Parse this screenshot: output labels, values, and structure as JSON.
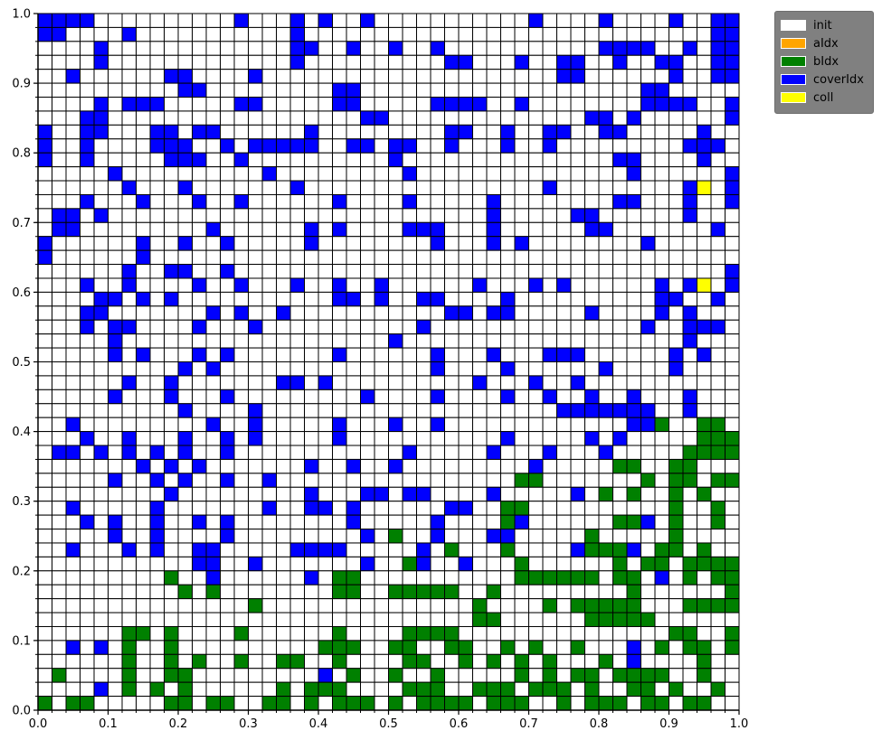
{
  "chart_data": {
    "type": "heatmap",
    "grid": {
      "cols": 50,
      "rows": 50
    },
    "xlim": [
      0.0,
      1.0
    ],
    "ylim": [
      0.0,
      1.0
    ],
    "xticks": [
      "0.0",
      "0.1",
      "0.2",
      "0.3",
      "0.4",
      "0.5",
      "0.6",
      "0.7",
      "0.8",
      "0.9",
      "1.0"
    ],
    "yticks": [
      "0.0",
      "0.1",
      "0.2",
      "0.3",
      "0.4",
      "0.5",
      "0.6",
      "0.7",
      "0.8",
      "0.9",
      "1.0"
    ],
    "legend_position": "outside-top-right",
    "legend": [
      {
        "label": "init",
        "color": "#ffffff"
      },
      {
        "label": "aIdx",
        "color": "#ffa500"
      },
      {
        "label": "bIdx",
        "color": "#008000"
      },
      {
        "label": "coverIdx",
        "color": "#0000ff"
      },
      {
        "label": "coll",
        "color": "#ffff00"
      }
    ],
    "row_order": "top-to-bottom",
    "cell_codes": {
      ".": "init",
      "a": "aIdx",
      "B": "bIdx",
      "C": "coverIdx",
      "Y": "coll"
    },
    "cells": [
      "CCCC..........C...C.C..C...........C....C....C..CC",
      "CC....C...........C.............................CC",
      "....C.............CC..C..C..C...........CCCC..C.CC",
      "....C.............C..........CC...C..CC..C..CC..CC",
      "..C......CC....C.....................CC......C..CC",
      "..........CC.........CC....................CC.....",
      "....C.CCC.....CC.....CC.....CCCC..C........CCCC..C",
      "...CC..................CC..............CC.C......C",
      "C..CC...CC.CC......C.........CC..C..CC..CC.....C..",
      "C..C....CCC..C.CCCCC..CC.CC..C...C..C.........CCC.",
      "C..C.....CCC..C..........C...............CC....C..",
      ".....C..........C.........C...............C......C",
      "......C...C.......C.................C.........CY.C",
      "...C...C...C..C......C....C.....C........CC...C..C",
      ".CC.C...........................C.....CC......C...",
      ".CC.........C......C.C....CCC...C......CC.......C.",
      "C......C..C..C.....C........C...C.C........C......",
      "C......C..........................................",
      "......C..CC..C...................................C",
      "...C..C....C..C...C..C..C......C...C.C......C.CY.C",
      "....CC.C.C...........CC.C..CC....C..........CC..C.",
      "...CC.......C.C..C...........CC.CC.....C....C.C...",
      "...C.CC....C...C...........C...............C..CCC.",
      ".....C...................C....................C...",
      ".....C.C...C.C.......C......C...C...CCC......C.C..",
      "..........C.C...............C....C......C....C....",
      "......C..C.......CC.C..........C...C..C...........",
      ".....C...C...C.........C....C....C..C..C..C...C...",
      "..........C....C.....................CCCCCCC..C...",
      "..C.........C..C.....C...C..C.............CCB..BB.",
      "...C..C...C..C.C.....C...........C.....C.C.....BBB",
      ".CC.C.C.C.C..C............C.....C...C...C.....BBBB",
      ".......C.C.C.......C..C..C.........C.....BB..BB...",
      ".....C..C.C..C..C.................BB.......B.BB.BB",
      ".........C.........C...CC.CC....C.....C.B.B..B.B..",
      "..C.....C.......C..CC.C......CC..BB..........B..B.",
      "...C.C..C..C.C........C.....C....BC......BBC.B..B.",
      ".....C..C....C.........C.B..C...CC.....B.....B....",
      "..C...C.C..CC.....CCCC.....C.B...B....CBBBC.BB.B..",
      "...........CC..C.......C..BC..C...B......B.BB.BBBB",
      ".........B..C......C.BB...........BBBBBB.BB.C.B.BB",
      "..........B.B........BB..BBBBB..B.........B......B",
      "...............B...............B....B.BBBBB...BBBB",
      "...............................BB......BBBBB......",
      "......BB.B....B......B....BBBB...............BB..B",
      "..C.C.B..B..........BBB..BB..BB..B.B..B...C.B.BB.B",
      "......B..B.B..B..BB..B....BB..B.B.B.B...B.C....B..",
      ".B....B..BB.........C.B..B..B.....B.B.BB.BBBB..B..",
      "....C.B.B.B......B.BBB....BBB..BBB.BBB.B..BB.B..B.",
      "B.BB.....BB.BB..BB.B.BBB.B.BBBB.BBB..B.BBB.BB.BB.."
    ]
  }
}
